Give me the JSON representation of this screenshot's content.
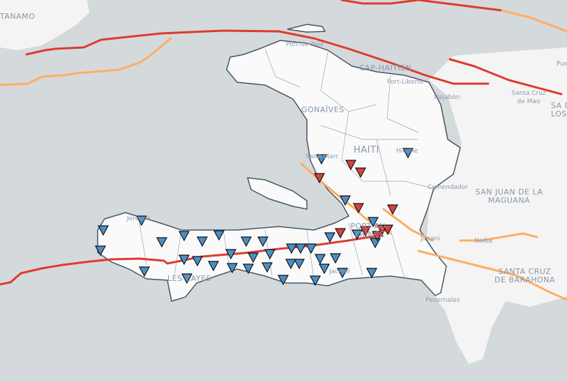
{
  "map": {
    "colors": {
      "water": "#d4d9dc",
      "land": "#f4f4f4",
      "haiti": "#fafafa",
      "border": "#4a5563",
      "fault_major": "#dd3b2e",
      "fault_minor": "#fdae61",
      "station_blue": "#4a90c8",
      "station_red": "#d94040"
    },
    "labels": {
      "guantanamo": "TANAMO",
      "port_de_paix": "Port-de-Paix",
      "cap_haitien": "CAP-HAITIEN",
      "fort_liberte": "Fort-Liberté",
      "dajabon": "Dajabón",
      "santa_cruz_mao": "Santa Cruz de Mao",
      "puerto": "Pue",
      "santiago": "SA DE LOS C",
      "gonaives": "GONAÏVES",
      "haiti": "HAITI",
      "hinche": "Hinche",
      "saint_marc": "Saint-Marc",
      "comendador": "Comendador",
      "san_juan": "SAN JUAN DE LA MAGUANA",
      "jeremie": "Jérémie",
      "port_au_prince": "PORT-AU-PRINCE",
      "jimani": "Jimani",
      "neiba": "Neiba",
      "les_cayes": "LES CAYES",
      "jacmel": "Jacmel",
      "barahona": "SANTA CRUZ DE BARAHONA",
      "pedernales": "Pedernales"
    },
    "station_types": [
      "blue-inverted-triangle",
      "red-inverted-triangle"
    ]
  }
}
